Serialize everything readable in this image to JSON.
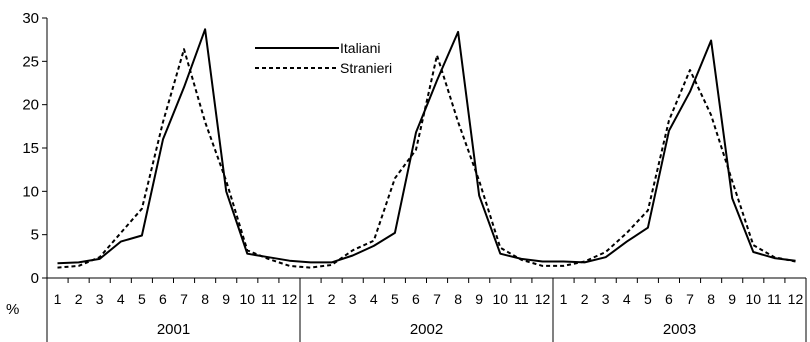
{
  "chart_data": {
    "type": "line",
    "ylabel": "%",
    "ylim": [
      0,
      30
    ],
    "yticks": [
      "0",
      "5",
      "10",
      "15",
      "20",
      "25",
      "30"
    ],
    "grid": false,
    "legend_position": "top-center",
    "years": [
      "2001",
      "2002",
      "2003"
    ],
    "month_labels": [
      "1",
      "2",
      "3",
      "4",
      "5",
      "6",
      "7",
      "8",
      "9",
      "10",
      "11",
      "12"
    ],
    "series": [
      {
        "name": "Italiani",
        "style": "solid",
        "color": "#000000",
        "values": [
          1.7,
          1.8,
          2.2,
          4.2,
          4.9,
          16.0,
          22.0,
          28.7,
          10.0,
          2.8,
          2.4,
          2.0,
          1.8,
          1.8,
          2.6,
          3.7,
          5.2,
          16.8,
          22.8,
          28.4,
          9.5,
          2.8,
          2.2,
          1.9,
          1.9,
          1.8,
          2.4,
          4.2,
          5.8,
          17.0,
          21.5,
          27.4,
          9.2,
          3.0,
          2.3,
          2.0
        ]
      },
      {
        "name": "Stranieri",
        "style": "dashed",
        "color": "#000000",
        "values": [
          1.2,
          1.4,
          2.4,
          5.2,
          8.0,
          18.0,
          26.4,
          18.0,
          11.2,
          3.2,
          2.2,
          1.4,
          1.2,
          1.5,
          3.2,
          4.3,
          11.5,
          14.8,
          25.7,
          18.0,
          11.2,
          3.5,
          2.1,
          1.4,
          1.4,
          1.9,
          3.0,
          5.2,
          7.8,
          18.2,
          24.0,
          18.8,
          11.2,
          3.8,
          2.4,
          1.9
        ]
      }
    ]
  }
}
